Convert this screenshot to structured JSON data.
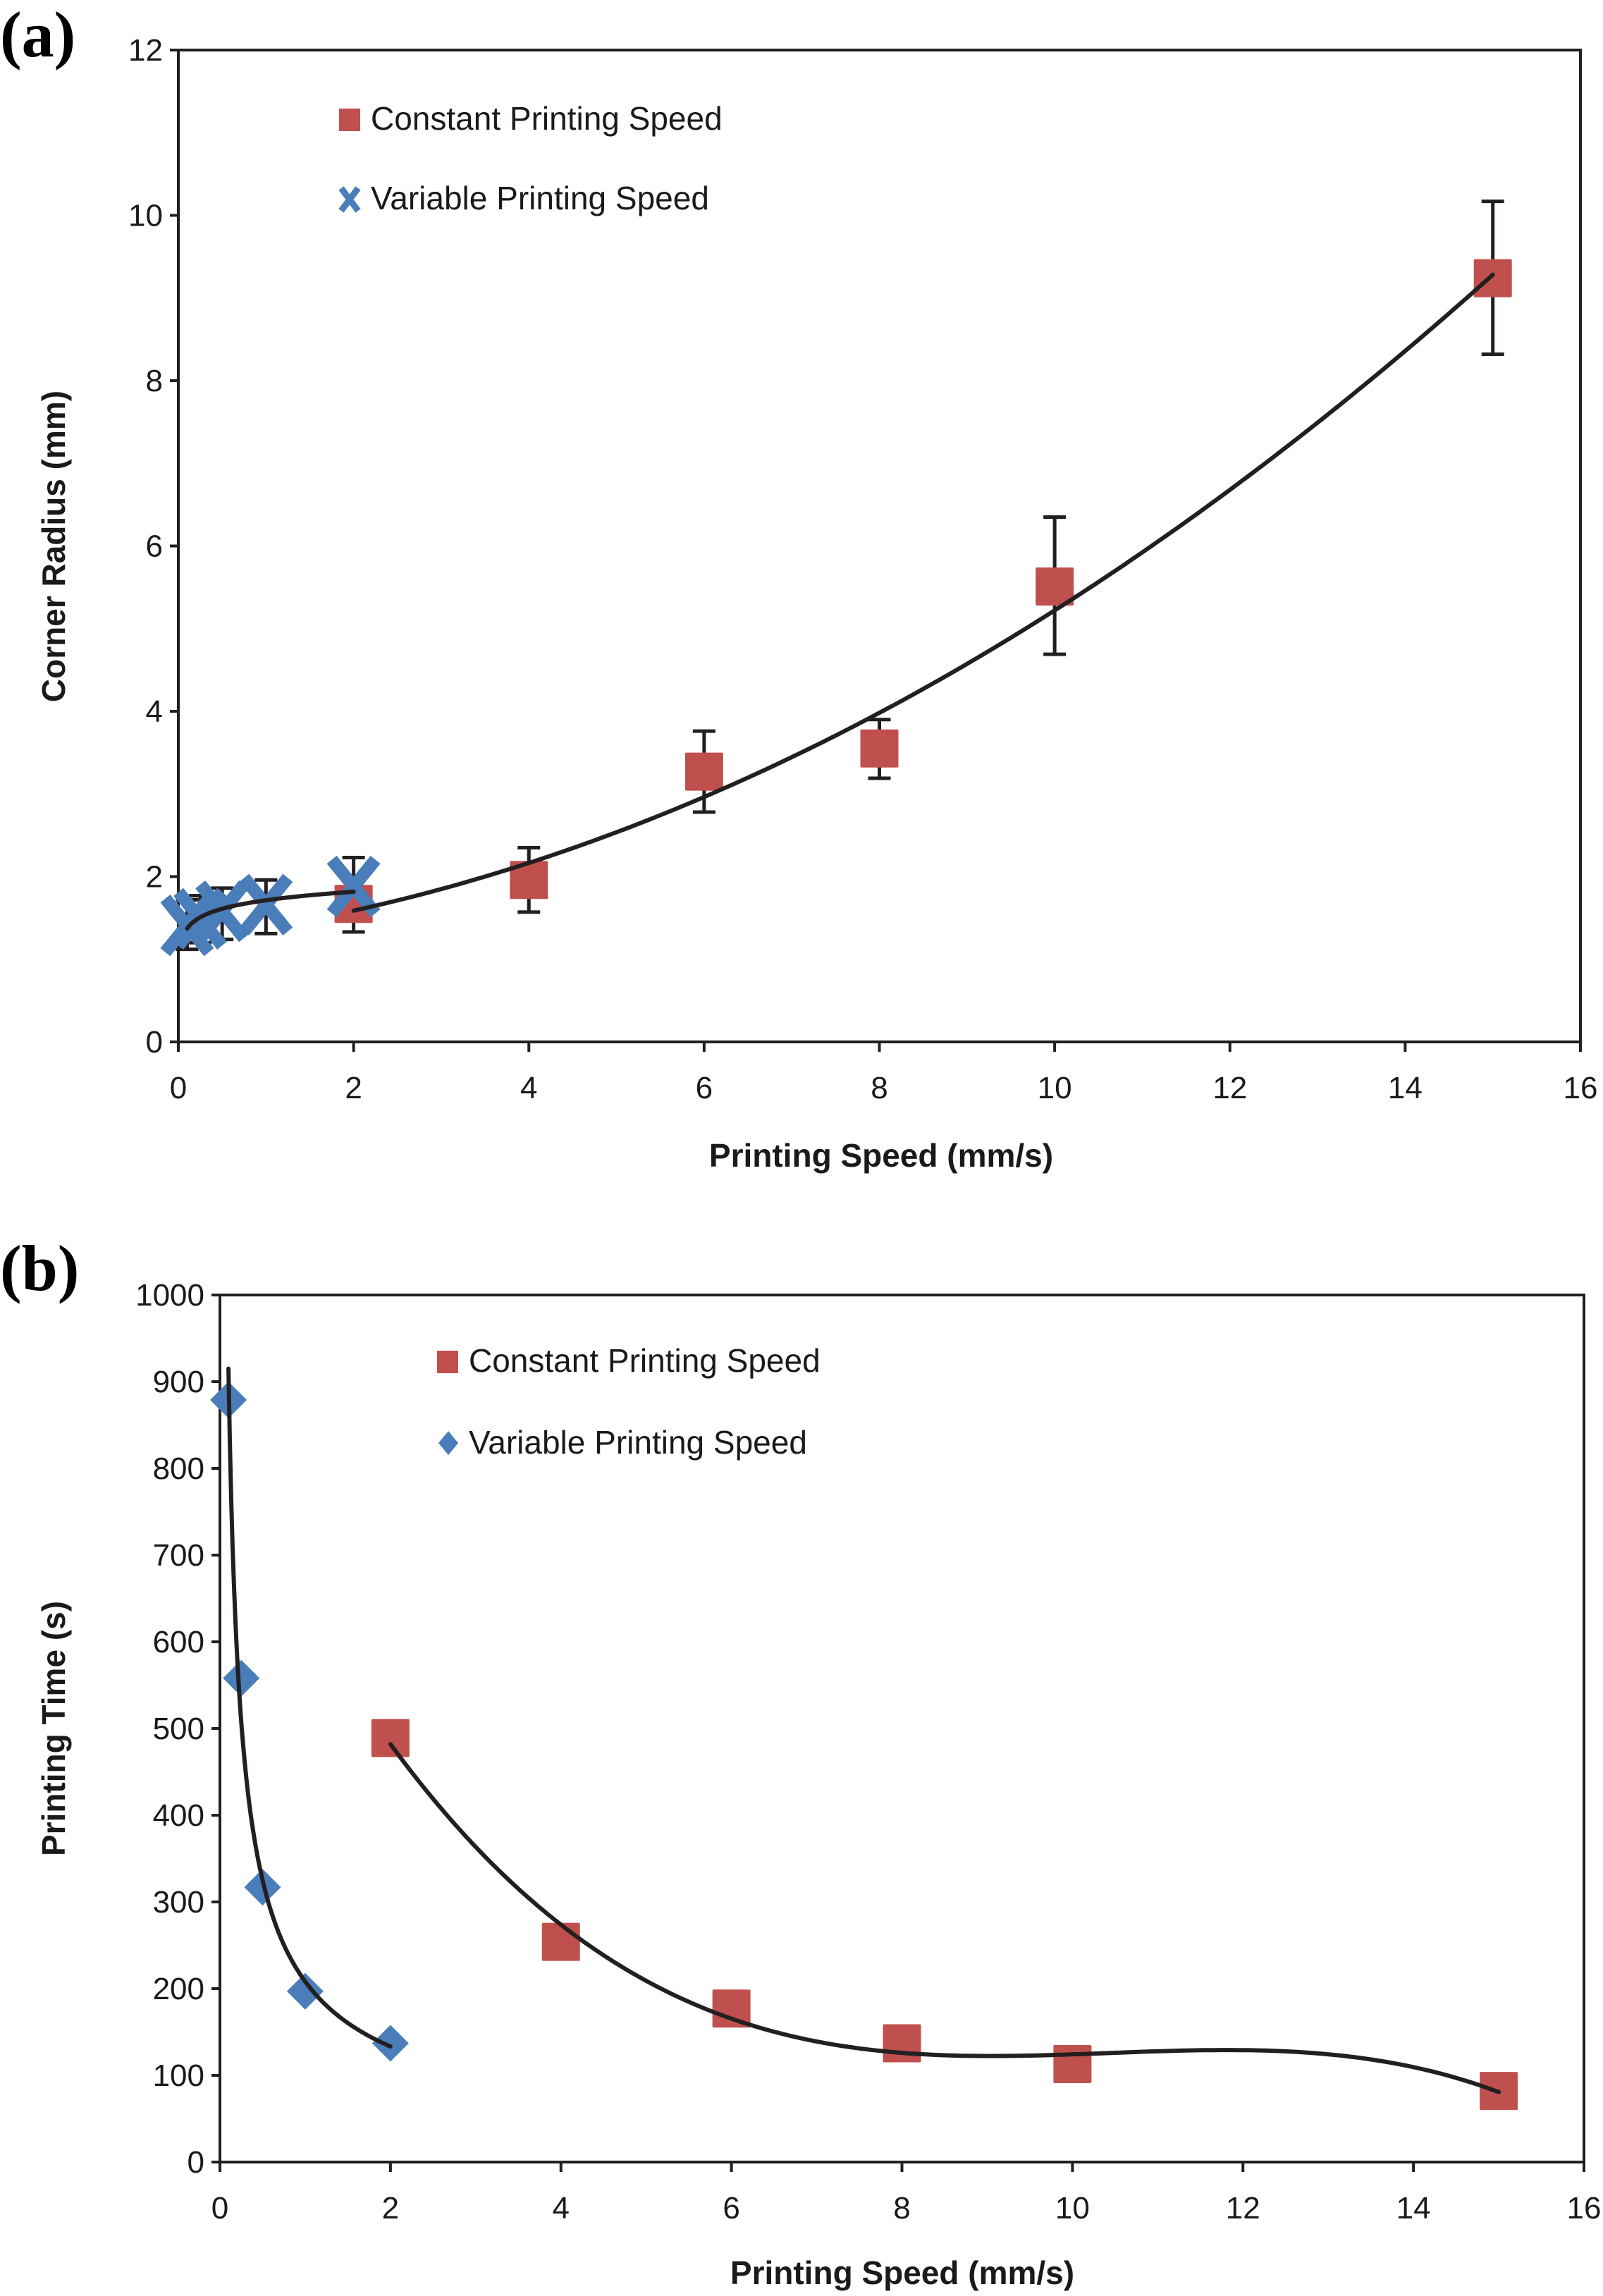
{
  "chart_data": [
    {
      "panel_label": "(a)",
      "type": "scatter",
      "xlabel": "Printing Speed (mm/s)",
      "ylabel": "Corner Radius (mm)",
      "xlim": [
        0,
        16
      ],
      "ylim": [
        0,
        12
      ],
      "xticks": [
        0,
        2,
        4,
        6,
        8,
        10,
        12,
        14,
        16
      ],
      "yticks": [
        0,
        2,
        4,
        6,
        8,
        10,
        12
      ],
      "grid": false,
      "legend_position": "top-left",
      "series": [
        {
          "name": "Constant Printing Speed",
          "marker": "square",
          "color": "#C0504D",
          "x": [
            2,
            4,
            6,
            8,
            10,
            15
          ],
          "y": [
            1.67,
            1.96,
            3.27,
            3.55,
            5.51,
            9.24
          ],
          "error_low": [
            1.33,
            1.57,
            2.78,
            3.19,
            4.69,
            8.32
          ],
          "error_high": [
            2.23,
            2.35,
            3.76,
            3.9,
            6.35,
            10.17
          ],
          "trendline": "polynomial",
          "trend_range": [
            2,
            15
          ]
        },
        {
          "name": "Variable Printing Speed",
          "marker": "x",
          "color": "#4A7EBB",
          "x": [
            0.1,
            0.25,
            0.5,
            1,
            2
          ],
          "y": [
            1.41,
            1.49,
            1.58,
            1.66,
            1.88
          ],
          "error_low": [
            1.12,
            1.2,
            1.24,
            1.31,
            1.75
          ],
          "error_high": [
            1.72,
            1.77,
            1.86,
            1.96,
            2.01
          ],
          "trendline": "logarithmic",
          "trend_range": [
            0.1,
            2
          ]
        }
      ]
    },
    {
      "panel_label": "(b)",
      "type": "scatter",
      "xlabel": "Printing Speed (mm/s)",
      "ylabel": "Printing Time (s)",
      "xlim": [
        0,
        16
      ],
      "ylim": [
        0,
        1000
      ],
      "xticks": [
        0,
        2,
        4,
        6,
        8,
        10,
        12,
        14,
        16
      ],
      "yticks": [
        0,
        100,
        200,
        300,
        400,
        500,
        600,
        700,
        800,
        900,
        1000
      ],
      "grid": false,
      "legend_position": "top-center",
      "series": [
        {
          "name": "Constant Printing Speed",
          "marker": "square",
          "color": "#C0504D",
          "x": [
            2,
            4,
            6,
            8,
            10,
            15
          ],
          "y": [
            489,
            254,
            177,
            137,
            113,
            82
          ],
          "trendline": "polynomial",
          "trend_range": [
            2,
            15
          ]
        },
        {
          "name": "Variable Printing Speed",
          "marker": "diamond",
          "color": "#4A7EBB",
          "x": [
            0.1,
            0.25,
            0.5,
            1,
            2
          ],
          "y": [
            879,
            558,
            317,
            197,
            137
          ],
          "trendline": "power",
          "trend_range": [
            0.1,
            2
          ]
        }
      ]
    }
  ]
}
